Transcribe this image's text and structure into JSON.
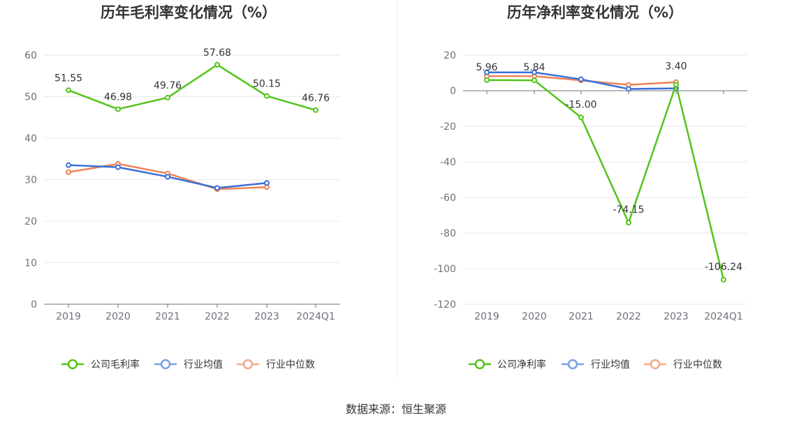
{
  "chart_data": [
    {
      "type": "line",
      "title": "历年毛利率变化情况（%）",
      "categories": [
        "2019",
        "2020",
        "2021",
        "2022",
        "2023",
        "2024Q1"
      ],
      "ylim": [
        0,
        60
      ],
      "yticks": [
        "60",
        "50",
        "40",
        "30",
        "20",
        "10",
        "0"
      ],
      "grid": true,
      "legend_position": "bottom",
      "series": [
        {
          "name": "公司毛利率",
          "color": "#52c41a",
          "values": [
            51.55,
            46.98,
            49.76,
            57.68,
            50.15,
            46.76
          ],
          "labels": [
            "51.55",
            "46.98",
            "49.76",
            "57.68",
            "50.15",
            "46.76"
          ]
        },
        {
          "name": "行业均值",
          "color": "#3a6fd8",
          "legend_color": "#7a9fe6",
          "values": [
            33.5,
            33.0,
            30.7,
            28.0,
            29.2,
            null
          ]
        },
        {
          "name": "行业中位数",
          "color": "#ee8357",
          "legend_color": "#f4a98b",
          "values": [
            31.8,
            33.8,
            31.5,
            27.7,
            28.2,
            null
          ]
        }
      ]
    },
    {
      "type": "line",
      "title": "历年净利率变化情况（%）",
      "categories": [
        "2019",
        "2020",
        "2021",
        "2022",
        "2023",
        "2024Q1"
      ],
      "ylim": [
        -120,
        20
      ],
      "yticks": [
        "20",
        "0",
        "-20",
        "-40",
        "-60",
        "-80",
        "-100",
        "-120"
      ],
      "grid": true,
      "legend_position": "bottom",
      "series": [
        {
          "name": "公司净利率",
          "color": "#52c41a",
          "values": [
            5.96,
            5.84,
            -15.0,
            -74.15,
            3.4,
            -106.24
          ],
          "labels": [
            "5.96",
            "5.84",
            "-15.00",
            "-74.15",
            "3.40",
            "-106.24"
          ]
        },
        {
          "name": "行业均值",
          "color": "#3a6fd8",
          "legend_color": "#7a9fe6",
          "values": [
            10.3,
            10.3,
            6.4,
            1.0,
            1.3,
            null
          ]
        },
        {
          "name": "行业中位数",
          "color": "#ee8357",
          "legend_color": "#f4a98b",
          "values": [
            8.2,
            8.2,
            5.8,
            3.3,
            4.8,
            null
          ]
        }
      ]
    }
  ],
  "source": "数据来源：恒生聚源"
}
